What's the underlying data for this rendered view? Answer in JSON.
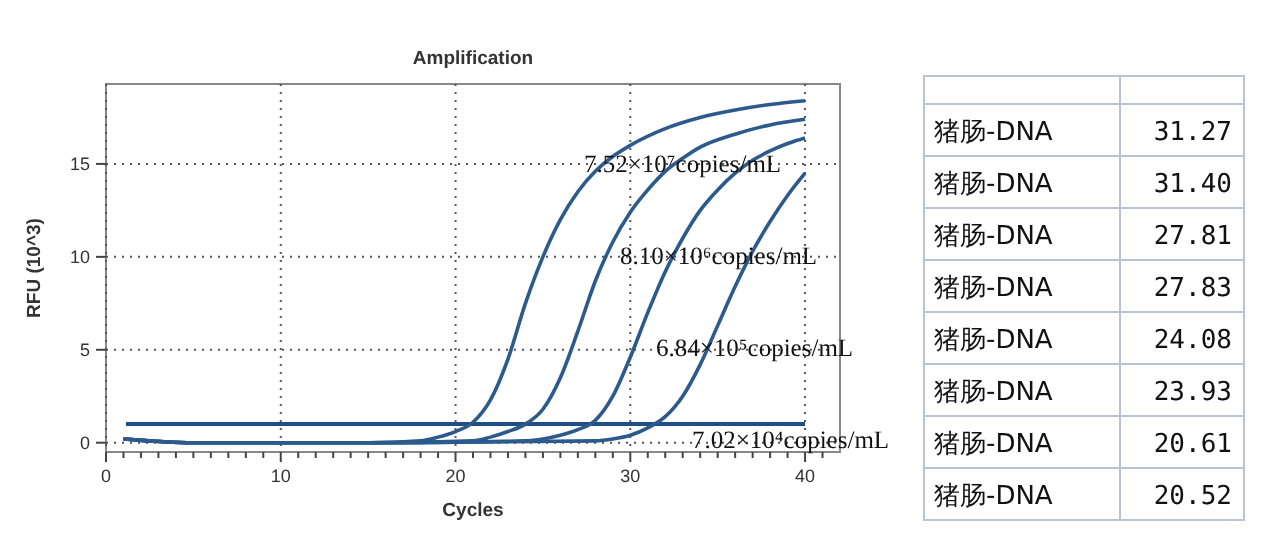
{
  "chart_data": [
    {
      "type": "line",
      "title": "Amplification",
      "xlabel": "Cycles",
      "ylabel": "RFU (10^3)",
      "xlim": [
        0,
        42
      ],
      "ylim": [
        -0.5,
        19.3
      ],
      "xticks": [
        0,
        {
          "value": 1,
          "label": null
        },
        {
          "value": 2,
          "label": null
        },
        {
          "value": 3,
          "label": null
        },
        {
          "value": 4,
          "label": null
        },
        {
          "value": 5,
          "label": null
        },
        {
          "value": 6,
          "label": null
        },
        {
          "value": 7,
          "label": null
        },
        {
          "value": 8,
          "label": null
        },
        {
          "value": 9,
          "label": null
        },
        10,
        {
          "value": 11,
          "label": null
        },
        {
          "value": 12,
          "label": null
        },
        {
          "value": 13,
          "label": null
        },
        {
          "value": 14,
          "label": null
        },
        {
          "value": 15,
          "label": null
        },
        {
          "value": 16,
          "label": null
        },
        {
          "value": 17,
          "label": null
        },
        {
          "value": 18,
          "label": null
        },
        {
          "value": 19,
          "label": null
        },
        20,
        {
          "value": 21,
          "label": null
        },
        {
          "value": 22,
          "label": null
        },
        {
          "value": 23,
          "label": null
        },
        {
          "value": 24,
          "label": null
        },
        {
          "value": 25,
          "label": null
        },
        {
          "value": 26,
          "label": null
        },
        {
          "value": 27,
          "label": null
        },
        {
          "value": 28,
          "label": null
        },
        {
          "value": 29,
          "label": null
        },
        30,
        {
          "value": 31,
          "label": null
        },
        {
          "value": 32,
          "label": null
        },
        {
          "value": 33,
          "label": null
        },
        {
          "value": 34,
          "label": null
        },
        {
          "value": 35,
          "label": null
        },
        {
          "value": 36,
          "label": null
        },
        {
          "value": 37,
          "label": null
        },
        {
          "value": 38,
          "label": null
        },
        {
          "value": 39,
          "label": null
        },
        40,
        {
          "value": 41,
          "label": null
        }
      ],
      "yticks": [
        0,
        5,
        10,
        15
      ],
      "grid": true,
      "line_style": "solid",
      "marker": "none",
      "series": [
        {
          "color": "#2c5a8c",
          "x": [
            1,
            5,
            15,
            18,
            19,
            20,
            21,
            22,
            23,
            24,
            25,
            26,
            27,
            28,
            29,
            30,
            32,
            34,
            36,
            38,
            40
          ],
          "values": [
            0.2,
            0,
            0,
            0.1,
            0.3,
            0.6,
            1.1,
            2.3,
            4.5,
            7.5,
            10,
            12,
            13.5,
            14.6,
            15.4,
            16,
            16.9,
            17.5,
            17.9,
            18.2,
            18.4
          ]
        },
        {
          "color": "#2c5a8c",
          "x": [
            1,
            5,
            15,
            21,
            22,
            23,
            24,
            25,
            26,
            27,
            28,
            29,
            30,
            31,
            32,
            33,
            34,
            36,
            38,
            40
          ],
          "values": [
            0.2,
            0,
            0,
            0.1,
            0.3,
            0.6,
            1,
            1.8,
            3.5,
            6,
            8.7,
            10.8,
            12.4,
            13.6,
            14.6,
            15.3,
            15.9,
            16.6,
            17.1,
            17.4
          ]
        },
        {
          "color": "#2c5a8c",
          "x": [
            1,
            5,
            15,
            24,
            25,
            26,
            27,
            28,
            29,
            30,
            31,
            32,
            33,
            34,
            35,
            36,
            37,
            38,
            39,
            40
          ],
          "values": [
            0.2,
            0,
            0,
            0.1,
            0.2,
            0.4,
            0.7,
            1.2,
            2.5,
            4.6,
            7,
            9.2,
            11,
            12.5,
            13.6,
            14.5,
            15.2,
            15.7,
            16.1,
            16.4
          ]
        },
        {
          "color": "#2c5a8c",
          "x": [
            1,
            5,
            15,
            28,
            29,
            30,
            31,
            32,
            33,
            34,
            35,
            36,
            37,
            38,
            39,
            40
          ],
          "values": [
            0.2,
            0,
            0,
            0.1,
            0.2,
            0.4,
            0.8,
            1.4,
            2.5,
            4.2,
            6.3,
            8.4,
            10.3,
            11.9,
            13.3,
            14.5
          ]
        }
      ],
      "ref_lines": [
        {
          "axis": "y",
          "value": 1,
          "color": "#1d4f85"
        }
      ],
      "annotations": [
        "7.52×10⁷copies/mL",
        "8.10×10⁶copies/mL",
        "6.84×10⁵copies/mL",
        "7.02×10⁴copies/mL"
      ]
    },
    {
      "type": "other",
      "annotations": [
        "猪肠-DNA",
        "31.27",
        "猪肠-DNA",
        "31.40",
        "猪肠-DNA",
        "27.81",
        "猪肠-DNA",
        "27.83",
        "猪肠-DNA",
        "24.08",
        "猪肠-DNA",
        "23.93",
        "猪肠-DNA",
        "20.61",
        "猪肠-DNA",
        "20.52"
      ]
    }
  ]
}
